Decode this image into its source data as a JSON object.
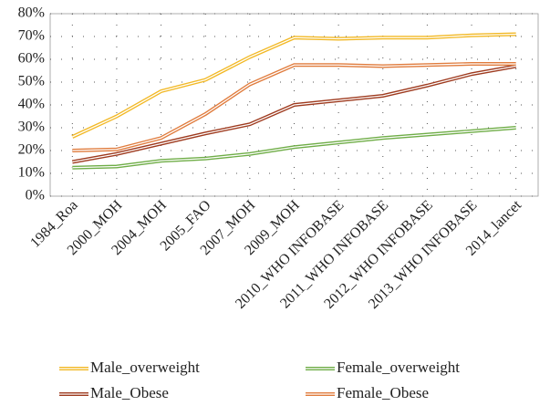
{
  "chart_data": {
    "type": "line",
    "categories": [
      "1984_Roa",
      "2000_MOH",
      "2004_MOH",
      "2005_FAO",
      "2007_MOH",
      "2009_MOH",
      "2010_WHO INFOBASE",
      "2011_WHO INFOBASE",
      "2012_WHO INFOBASE",
      "2013_WHO INFOBASE",
      "2014_lancet"
    ],
    "series": [
      {
        "name": "Male_overweight",
        "color": "#f2b824",
        "values": [
          26,
          35,
          46,
          51,
          61,
          69.5,
          69,
          69.5,
          69.5,
          70.5,
          71
        ]
      },
      {
        "name": "Female_overweight",
        "color": "#6fad47",
        "values": [
          12.5,
          13,
          15.5,
          16.5,
          18.5,
          21.5,
          23.5,
          25.5,
          27,
          28.5,
          30
        ]
      },
      {
        "name": "Male_Obese",
        "color": "#9e3a1e",
        "values": [
          15,
          18.5,
          23,
          27.5,
          31.5,
          40,
          42,
          44,
          48.5,
          53.5,
          57
        ]
      },
      {
        "name": "Female_Obese",
        "color": "#e07b3c",
        "values": [
          20,
          20.5,
          25.5,
          36,
          49,
          57.5,
          57.5,
          57,
          57.5,
          58,
          58
        ]
      }
    ],
    "ylim": [
      0,
      80
    ],
    "yticks": [
      {
        "value": 0,
        "label": "0%"
      },
      {
        "value": 10,
        "label": "10%"
      },
      {
        "value": 20,
        "label": "20%"
      },
      {
        "value": 30,
        "label": "30%"
      },
      {
        "value": 40,
        "label": "40%"
      },
      {
        "value": 50,
        "label": "50%"
      },
      {
        "value": 60,
        "label": "60%"
      },
      {
        "value": 70,
        "label": "70%"
      },
      {
        "value": 80,
        "label": "80%"
      }
    ],
    "grid": true
  }
}
